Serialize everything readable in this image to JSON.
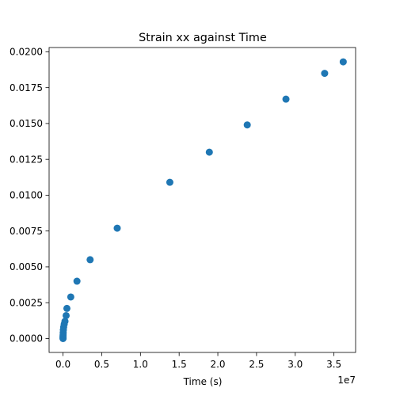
{
  "chart_data": {
    "type": "scatter",
    "title": "Strain xx against Time",
    "xlabel": "Time (s)",
    "ylabel": "",
    "x_offset_label": "1e7",
    "xlim": [
      -0.18,
      3.78
    ],
    "ylim": [
      -0.00097,
      0.0203
    ],
    "x_ticks": [
      0.0,
      0.5,
      1.0,
      1.5,
      2.0,
      2.5,
      3.0,
      3.5
    ],
    "x_tick_labels": [
      "0.0",
      "0.5",
      "1.0",
      "1.5",
      "2.0",
      "2.5",
      "3.0",
      "3.5"
    ],
    "y_ticks": [
      0.0,
      0.0025,
      0.005,
      0.0075,
      0.01,
      0.0125,
      0.015,
      0.0175,
      0.02
    ],
    "y_tick_labels": [
      "0.0000",
      "0.0025",
      "0.0050",
      "0.0075",
      "0.0100",
      "0.0125",
      "0.0150",
      "0.0175",
      "0.0200"
    ],
    "grid": false,
    "series": [
      {
        "marker_color": "#1f77b4",
        "points": [
          {
            "x": 0.0,
            "y": 0.0
          },
          {
            "x": 0.0,
            "y": 3e-05
          },
          {
            "x": 0.0,
            "y": 8e-05
          },
          {
            "x": 0.0,
            "y": 0.00015
          },
          {
            "x": 0.001,
            "y": 0.00025
          },
          {
            "x": 0.002,
            "y": 0.0004
          },
          {
            "x": 0.004,
            "y": 0.0006
          },
          {
            "x": 0.008,
            "y": 0.0008
          },
          {
            "x": 0.015,
            "y": 0.001
          },
          {
            "x": 0.025,
            "y": 0.0012
          },
          {
            "x": 0.04,
            "y": 0.0016
          },
          {
            "x": 0.05,
            "y": 0.0021
          },
          {
            "x": 0.1,
            "y": 0.0029
          },
          {
            "x": 0.18,
            "y": 0.004
          },
          {
            "x": 0.35,
            "y": 0.0055
          },
          {
            "x": 0.7,
            "y": 0.0077
          },
          {
            "x": 1.38,
            "y": 0.0109
          },
          {
            "x": 1.89,
            "y": 0.013
          },
          {
            "x": 2.38,
            "y": 0.0149
          },
          {
            "x": 2.88,
            "y": 0.0167
          },
          {
            "x": 3.38,
            "y": 0.0185
          },
          {
            "x": 3.62,
            "y": 0.0193
          }
        ]
      }
    ]
  }
}
